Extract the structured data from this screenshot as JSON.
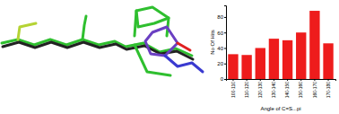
{
  "chart_data": {
    "type": "bar",
    "categories": [
      "100-110",
      "110-120",
      "120-130",
      "130-140",
      "140-150",
      "150-160",
      "160-170",
      "170-180"
    ],
    "values": [
      32,
      31,
      40,
      52,
      50,
      60,
      88,
      46
    ],
    "color": "#ee1c1c",
    "x_label": "Angle of C=S...pi",
    "y_label": "No Of Hits",
    "ylim": [
      0,
      95
    ],
    "yticks": [
      0,
      20,
      40,
      60,
      80
    ],
    "grid": false
  }
}
